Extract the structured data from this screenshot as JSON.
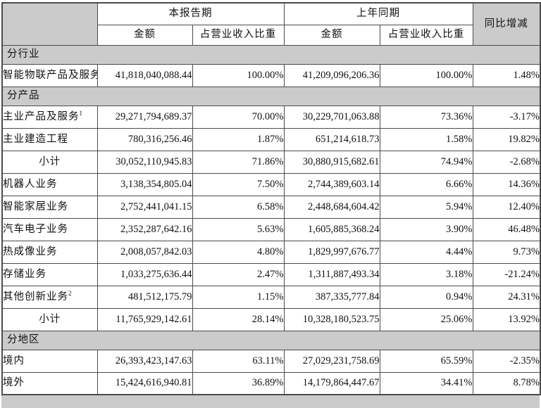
{
  "colors": {
    "section_bg": "#cbcbcb",
    "border": "#4b4b4b",
    "text": "#111111",
    "row_bg": "#ffffff"
  },
  "table": {
    "header": {
      "corner_label": "",
      "current_period": "本报告期",
      "prior_period": "上年同期",
      "yoy": "同比增减",
      "amount_label": "金额",
      "pct_label": "占营业收入比重"
    },
    "rows": [
      {
        "type": "section",
        "label": "分行业"
      },
      {
        "type": "data",
        "label": "智能物联产品及服务",
        "sup": "",
        "center": false,
        "values": [
          "41,818,040,088.44",
          "100.00%",
          "41,209,096,206.36",
          "100.00%",
          "1.48%"
        ]
      },
      {
        "type": "section",
        "label": "分产品"
      },
      {
        "type": "data",
        "label": "主业产品及服务",
        "sup": "1",
        "center": false,
        "values": [
          "29,271,794,689.37",
          "70.00%",
          "30,229,701,063.88",
          "73.36%",
          "-3.17%"
        ]
      },
      {
        "type": "data",
        "label": "主业建造工程",
        "sup": "",
        "center": false,
        "values": [
          "780,316,256.46",
          "1.87%",
          "651,214,618.73",
          "1.58%",
          "19.82%"
        ]
      },
      {
        "type": "data",
        "label": "小计",
        "sup": "",
        "center": true,
        "values": [
          "30,052,110,945.83",
          "71.86%",
          "30,880,915,682.61",
          "74.94%",
          "-2.68%"
        ]
      },
      {
        "type": "data",
        "label": "机器人业务",
        "sup": "",
        "center": false,
        "values": [
          "3,138,354,805.04",
          "7.50%",
          "2,744,389,603.14",
          "6.66%",
          "14.36%"
        ]
      },
      {
        "type": "data",
        "label": "智能家居业务",
        "sup": "",
        "center": false,
        "values": [
          "2,752,441,041.15",
          "6.58%",
          "2,448,684,604.42",
          "5.94%",
          "12.40%"
        ]
      },
      {
        "type": "data",
        "label": "汽车电子业务",
        "sup": "",
        "center": false,
        "values": [
          "2,352,287,642.16",
          "5.63%",
          "1,605,885,368.24",
          "3.90%",
          "46.48%"
        ]
      },
      {
        "type": "data",
        "label": "热成像业务",
        "sup": "",
        "center": false,
        "values": [
          "2,008,057,842.03",
          "4.80%",
          "1,829,997,676.77",
          "4.44%",
          "9.73%"
        ]
      },
      {
        "type": "data",
        "label": "存储业务",
        "sup": "",
        "center": false,
        "values": [
          "1,033,275,636.44",
          "2.47%",
          "1,311,887,493.34",
          "3.18%",
          "-21.24%"
        ]
      },
      {
        "type": "data",
        "label": "其他创新业务",
        "sup": "2",
        "center": false,
        "values": [
          "481,512,175.79",
          "1.15%",
          "387,335,777.84",
          "0.94%",
          "24.31%"
        ]
      },
      {
        "type": "data",
        "label": "小计",
        "sup": "",
        "center": true,
        "values": [
          "11,765,929,142.61",
          "28.14%",
          "10,328,180,523.75",
          "25.06%",
          "13.92%"
        ]
      },
      {
        "type": "section",
        "label": "分地区"
      },
      {
        "type": "data",
        "label": "境内",
        "sup": "",
        "center": false,
        "values": [
          "26,393,423,147.63",
          "63.11%",
          "27,029,231,758.69",
          "65.59%",
          "-2.35%"
        ]
      },
      {
        "type": "data",
        "label": "境外",
        "sup": "",
        "center": false,
        "values": [
          "15,424,616,940.81",
          "36.89%",
          "14,179,864,447.67",
          "34.41%",
          "8.78%"
        ]
      }
    ]
  }
}
